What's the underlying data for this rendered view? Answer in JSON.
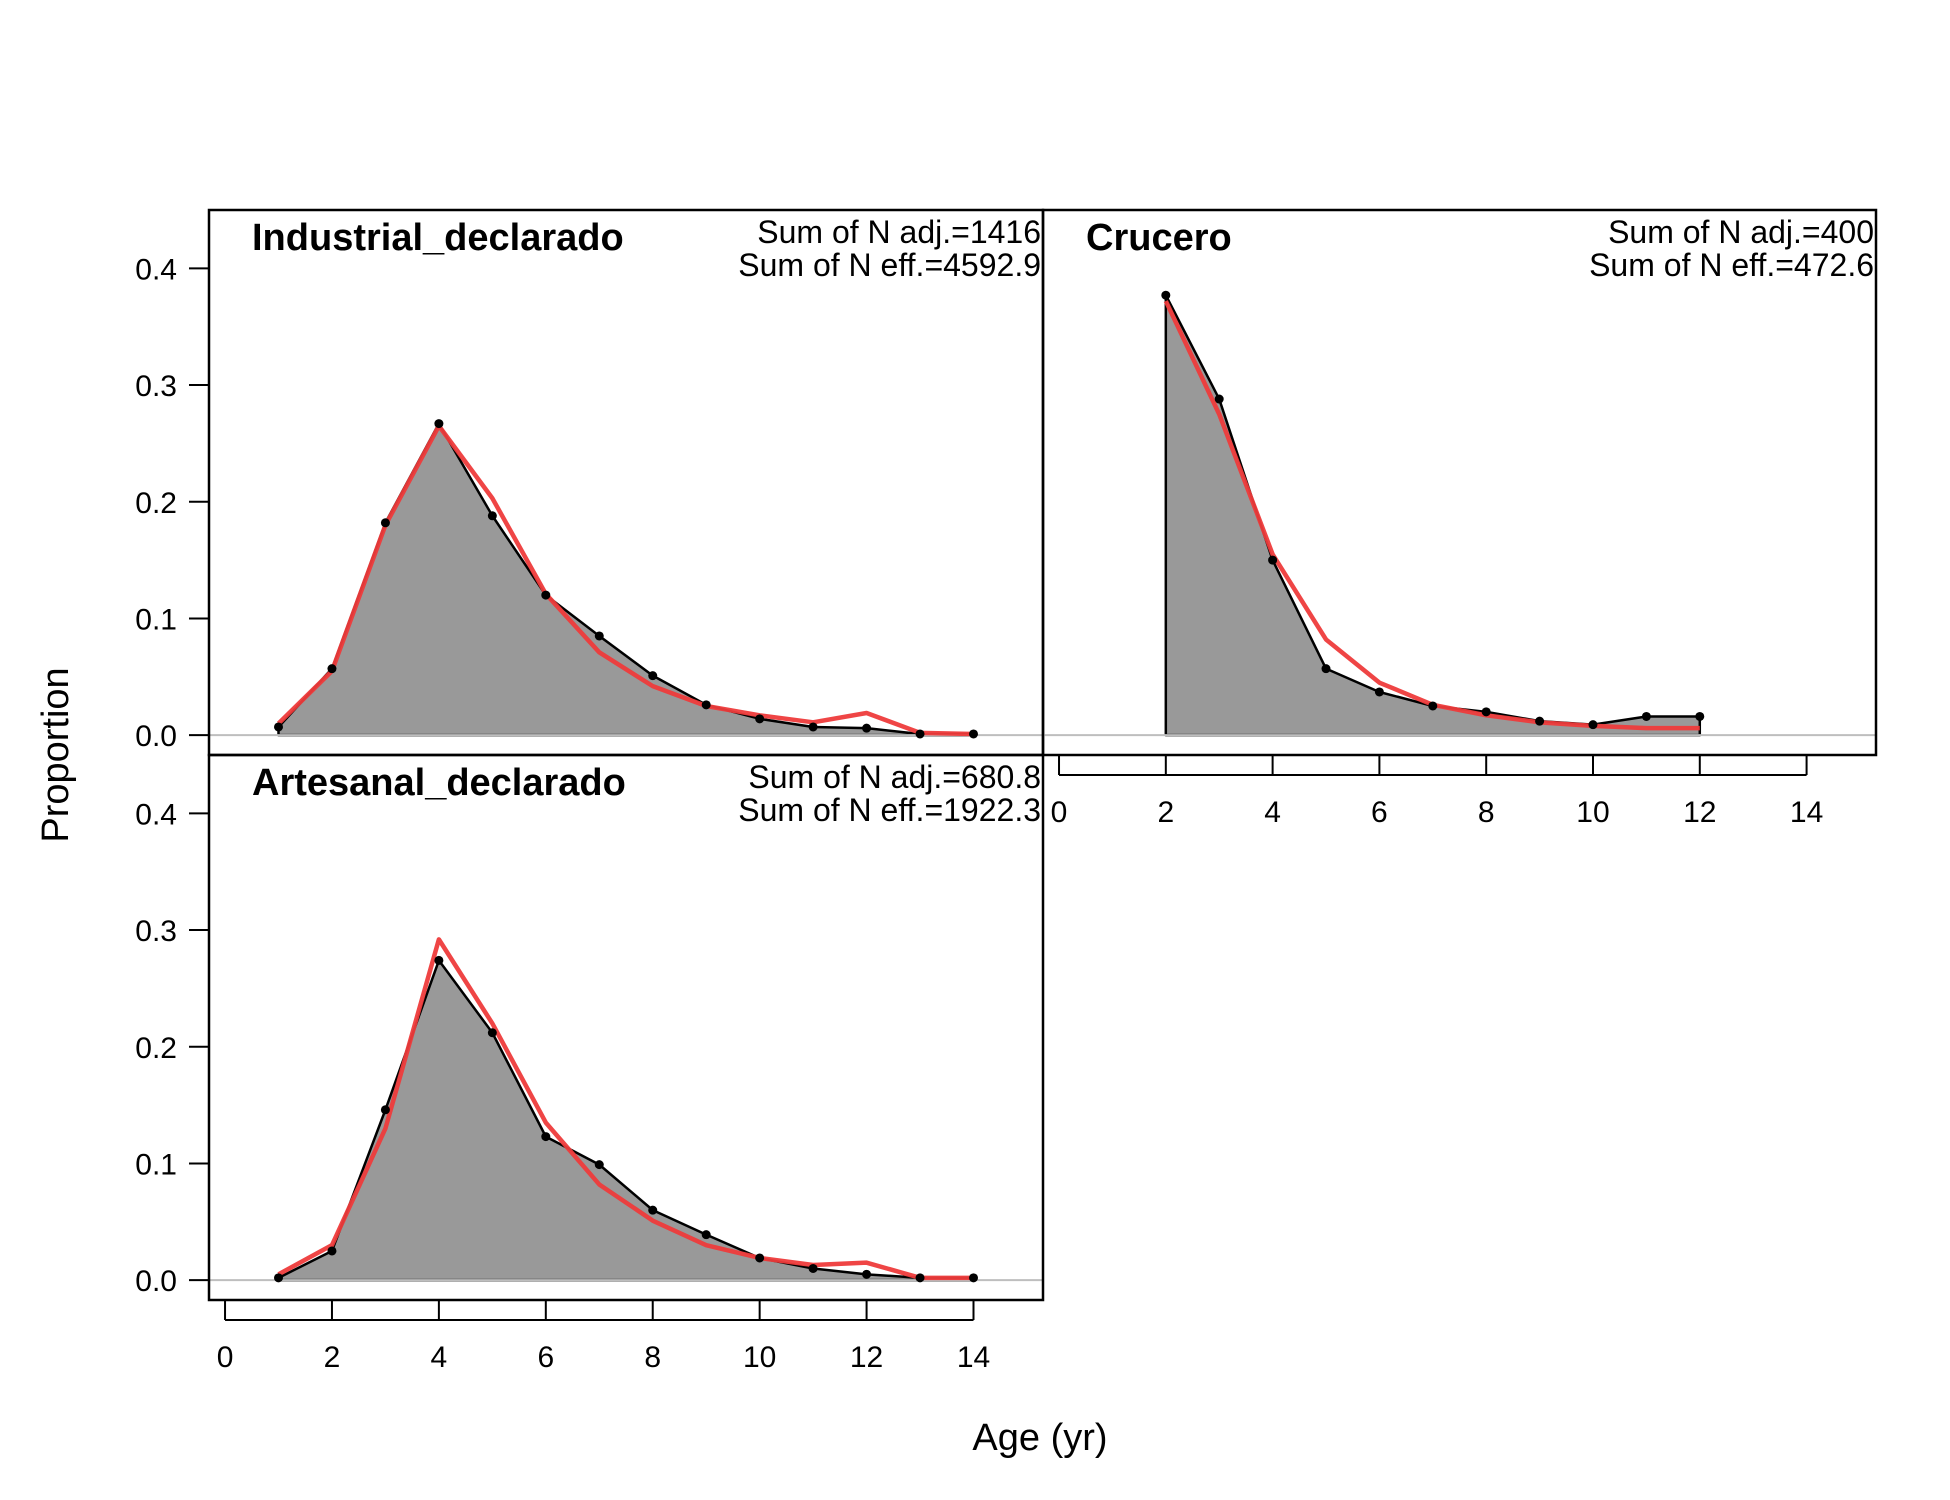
{
  "chart_data": {
    "type": "area",
    "xlabel": "Age (yr)",
    "ylabel": "Proportion",
    "xlim": [
      -0.3,
      15.3
    ],
    "ylim": [
      -0.017,
      0.45
    ],
    "x_ticks": [
      0,
      2,
      4,
      6,
      8,
      10,
      12,
      14
    ],
    "y_ticks": [
      0.0,
      0.1,
      0.2,
      0.3,
      0.4
    ],
    "y_tick_labels": [
      "0.0",
      "0.1",
      "0.2",
      "0.3",
      "0.4"
    ],
    "colors": {
      "observed_fill": "#999999",
      "observed_line": "#000000",
      "expected_line": "#ee3b3b",
      "zero_line": "#bebebe"
    },
    "panels": [
      {
        "title": "Industrial_declarado",
        "annotation_line1": "Sum of N adj.=1416",
        "annotation_line2": "Sum of N eff.=4592.9",
        "x": [
          1,
          2,
          3,
          4,
          5,
          6,
          7,
          8,
          9,
          10,
          11,
          12,
          13,
          14
        ],
        "observed": [
          0.007,
          0.057,
          0.182,
          0.267,
          0.188,
          0.12,
          0.085,
          0.051,
          0.026,
          0.014,
          0.007,
          0.006,
          0.001,
          0.001
        ],
        "expected": [
          0.01,
          0.055,
          0.18,
          0.265,
          0.203,
          0.121,
          0.071,
          0.042,
          0.025,
          0.017,
          0.011,
          0.019,
          0.002,
          0.001
        ]
      },
      {
        "title": "Crucero",
        "annotation_line1": "Sum of N adj.=400",
        "annotation_line2": "Sum of N eff.=472.6",
        "x": [
          2,
          3,
          4,
          5,
          6,
          7,
          8,
          9,
          10,
          11,
          12
        ],
        "observed": [
          0.377,
          0.288,
          0.15,
          0.057,
          0.037,
          0.025,
          0.02,
          0.012,
          0.009,
          0.016,
          0.016
        ],
        "expected": [
          0.372,
          0.275,
          0.155,
          0.082,
          0.045,
          0.026,
          0.017,
          0.011,
          0.008,
          0.006,
          0.006
        ]
      },
      {
        "title": "Artesanal_declarado",
        "annotation_line1": "Sum of N adj.=680.8",
        "annotation_line2": "Sum of N eff.=1922.3",
        "x": [
          1,
          2,
          3,
          4,
          5,
          6,
          7,
          8,
          9,
          10,
          11,
          12,
          13,
          14
        ],
        "observed": [
          0.002,
          0.025,
          0.146,
          0.274,
          0.212,
          0.123,
          0.099,
          0.06,
          0.039,
          0.019,
          0.01,
          0.005,
          0.002,
          0.002
        ],
        "expected": [
          0.005,
          0.03,
          0.13,
          0.292,
          0.22,
          0.135,
          0.082,
          0.051,
          0.03,
          0.019,
          0.013,
          0.015,
          0.002,
          0.002
        ]
      }
    ]
  }
}
